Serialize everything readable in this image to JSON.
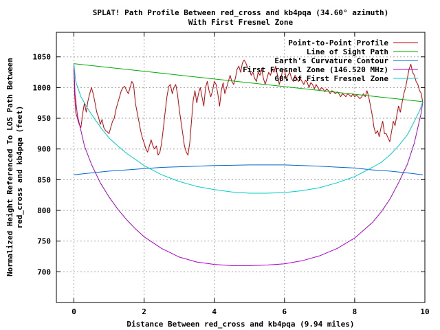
{
  "chart_data": {
    "type": "line",
    "title": [
      "SPLAT! Path Profile Between red_cross and kb4pqa (34.60° azimuth)",
      "With First Fresnel Zone"
    ],
    "xlabel": "Distance Between red_cross and kb4pqa (9.94 miles)",
    "ylabel": [
      "Normalized Height Referenced To LOS Path Between",
      "red_cross and kb4pqa (feet)"
    ],
    "xlim": [
      -0.5,
      10
    ],
    "ylim": [
      650,
      1090
    ],
    "xticks": [
      "0",
      "2",
      "4",
      "6",
      "8",
      "10"
    ],
    "xtick_values": [
      0,
      2,
      4,
      6,
      8,
      10
    ],
    "yticks": [
      "700",
      "750",
      "800",
      "850",
      "900",
      "950",
      "1000",
      "1050"
    ],
    "ytick_values": [
      700,
      750,
      800,
      850,
      900,
      950,
      1000,
      1050
    ],
    "grid": true,
    "legend_position": "top-right",
    "series": [
      {
        "name": "Point-to-Point Profile",
        "color": "#cc0000",
        "points": [
          [
            0.0,
            1035
          ],
          [
            0.02,
            990
          ],
          [
            0.05,
            960
          ],
          [
            0.1,
            950
          ],
          [
            0.15,
            940
          ],
          [
            0.2,
            935
          ],
          [
            0.25,
            958
          ],
          [
            0.3,
            975
          ],
          [
            0.35,
            960
          ],
          [
            0.4,
            978
          ],
          [
            0.45,
            990
          ],
          [
            0.5,
            1000
          ],
          [
            0.55,
            990
          ],
          [
            0.6,
            975
          ],
          [
            0.65,
            960
          ],
          [
            0.7,
            952
          ],
          [
            0.75,
            940
          ],
          [
            0.8,
            948
          ],
          [
            0.85,
            935
          ],
          [
            0.9,
            930
          ],
          [
            0.95,
            928
          ],
          [
            1.0,
            925
          ],
          [
            1.05,
            935
          ],
          [
            1.1,
            945
          ],
          [
            1.15,
            950
          ],
          [
            1.2,
            965
          ],
          [
            1.25,
            975
          ],
          [
            1.3,
            985
          ],
          [
            1.35,
            995
          ],
          [
            1.4,
            1000
          ],
          [
            1.45,
            1002
          ],
          [
            1.5,
            995
          ],
          [
            1.55,
            990
          ],
          [
            1.6,
            1000
          ],
          [
            1.65,
            1010
          ],
          [
            1.7,
            1005
          ],
          [
            1.75,
            975
          ],
          [
            1.8,
            960
          ],
          [
            1.85,
            945
          ],
          [
            1.9,
            930
          ],
          [
            1.95,
            918
          ],
          [
            2.0,
            910
          ],
          [
            2.05,
            900
          ],
          [
            2.1,
            895
          ],
          [
            2.15,
            905
          ],
          [
            2.2,
            915
          ],
          [
            2.25,
            905
          ],
          [
            2.3,
            900
          ],
          [
            2.35,
            905
          ],
          [
            2.4,
            890
          ],
          [
            2.45,
            895
          ],
          [
            2.5,
            910
          ],
          [
            2.55,
            935
          ],
          [
            2.6,
            960
          ],
          [
            2.65,
            985
          ],
          [
            2.7,
            1002
          ],
          [
            2.75,
            1005
          ],
          [
            2.8,
            990
          ],
          [
            2.85,
            1000
          ],
          [
            2.9,
            1005
          ],
          [
            2.95,
            990
          ],
          [
            3.0,
            965
          ],
          [
            3.05,
            945
          ],
          [
            3.1,
            925
          ],
          [
            3.15,
            905
          ],
          [
            3.2,
            895
          ],
          [
            3.25,
            890
          ],
          [
            3.3,
            910
          ],
          [
            3.35,
            945
          ],
          [
            3.4,
            980
          ],
          [
            3.45,
            995
          ],
          [
            3.5,
            975
          ],
          [
            3.55,
            990
          ],
          [
            3.6,
            1000
          ],
          [
            3.65,
            985
          ],
          [
            3.7,
            970
          ],
          [
            3.75,
            1000
          ],
          [
            3.8,
            1010
          ],
          [
            3.85,
            995
          ],
          [
            3.9,
            985
          ],
          [
            3.95,
            995
          ],
          [
            4.0,
            1010
          ],
          [
            4.05,
            1005
          ],
          [
            4.1,
            990
          ],
          [
            4.15,
            970
          ],
          [
            4.2,
            995
          ],
          [
            4.25,
            1008
          ],
          [
            4.3,
            990
          ],
          [
            4.35,
            1000
          ],
          [
            4.4,
            1010
          ],
          [
            4.45,
            1020
          ],
          [
            4.5,
            1010
          ],
          [
            4.55,
            1005
          ],
          [
            4.6,
            1015
          ],
          [
            4.65,
            1030
          ],
          [
            4.7,
            1035
          ],
          [
            4.75,
            1025
          ],
          [
            4.8,
            1040
          ],
          [
            4.85,
            1045
          ],
          [
            4.9,
            1040
          ],
          [
            4.95,
            1032
          ],
          [
            5.0,
            1030
          ],
          [
            5.05,
            1020
          ],
          [
            5.1,
            1025
          ],
          [
            5.15,
            1015
          ],
          [
            5.2,
            1010
          ],
          [
            5.25,
            1025
          ],
          [
            5.3,
            1020
          ],
          [
            5.35,
            1030
          ],
          [
            5.4,
            1015
          ],
          [
            5.45,
            1005
          ],
          [
            5.5,
            1015
          ],
          [
            5.55,
            1025
          ],
          [
            5.6,
            1020
          ],
          [
            5.65,
            1030
          ],
          [
            5.7,
            1025
          ],
          [
            5.75,
            1035
          ],
          [
            5.8,
            1020
          ],
          [
            5.85,
            1005
          ],
          [
            5.9,
            1015
          ],
          [
            5.95,
            1030
          ],
          [
            6.0,
            1028
          ],
          [
            6.05,
            1015
          ],
          [
            6.1,
            1020
          ],
          [
            6.15,
            1025
          ],
          [
            6.2,
            1015
          ],
          [
            6.25,
            1010
          ],
          [
            6.3,
            1020
          ],
          [
            6.35,
            1015
          ],
          [
            6.4,
            1010
          ],
          [
            6.45,
            1015
          ],
          [
            6.5,
            1010
          ],
          [
            6.55,
            1005
          ],
          [
            6.6,
            1012
          ],
          [
            6.65,
            1008
          ],
          [
            6.7,
            1000
          ],
          [
            6.75,
            1008
          ],
          [
            6.8,
            1005
          ],
          [
            6.85,
            998
          ],
          [
            6.9,
            1005
          ],
          [
            6.95,
            1000
          ],
          [
            7.0,
            995
          ],
          [
            7.05,
            1000
          ],
          [
            7.1,
            998
          ],
          [
            7.15,
            993
          ],
          [
            7.2,
            998
          ],
          [
            7.25,
            995
          ],
          [
            7.3,
            990
          ],
          [
            7.35,
            995
          ],
          [
            7.4,
            993
          ],
          [
            7.45,
            990
          ],
          [
            7.5,
            993
          ],
          [
            7.55,
            990
          ],
          [
            7.6,
            985
          ],
          [
            7.65,
            990
          ],
          [
            7.7,
            988
          ],
          [
            7.75,
            985
          ],
          [
            7.8,
            990
          ],
          [
            7.85,
            988
          ],
          [
            7.9,
            985
          ],
          [
            7.95,
            990
          ],
          [
            8.0,
            985
          ],
          [
            8.05,
            988
          ],
          [
            8.1,
            985
          ],
          [
            8.15,
            982
          ],
          [
            8.2,
            985
          ],
          [
            8.25,
            990
          ],
          [
            8.3,
            985
          ],
          [
            8.35,
            995
          ],
          [
            8.4,
            985
          ],
          [
            8.45,
            970
          ],
          [
            8.5,
            955
          ],
          [
            8.55,
            935
          ],
          [
            8.6,
            925
          ],
          [
            8.65,
            930
          ],
          [
            8.7,
            920
          ],
          [
            8.75,
            935
          ],
          [
            8.8,
            945
          ],
          [
            8.85,
            925
          ],
          [
            8.9,
            925
          ],
          [
            8.95,
            918
          ],
          [
            9.0,
            912
          ],
          [
            9.05,
            928
          ],
          [
            9.1,
            945
          ],
          [
            9.15,
            938
          ],
          [
            9.2,
            955
          ],
          [
            9.25,
            970
          ],
          [
            9.3,
            960
          ],
          [
            9.35,
            975
          ],
          [
            9.4,
            990
          ],
          [
            9.45,
            1000
          ],
          [
            9.5,
            1015
          ],
          [
            9.55,
            1030
          ],
          [
            9.6,
            1038
          ],
          [
            9.65,
            1025
          ],
          [
            9.7,
            1020
          ],
          [
            9.75,
            1010
          ],
          [
            9.8,
            1005
          ],
          [
            9.85,
            995
          ],
          [
            9.9,
            990
          ],
          [
            9.94,
            975
          ]
        ]
      },
      {
        "name": "Line of Sight Path",
        "color": "#00aa00",
        "points": [
          [
            0.0,
            1039
          ],
          [
            9.94,
            977
          ]
        ]
      },
      {
        "name": "Earth's Curvature Contour",
        "color": "#0066cc",
        "points": [
          [
            0.0,
            858
          ],
          [
            0.5,
            861
          ],
          [
            1.0,
            864
          ],
          [
            1.5,
            866
          ],
          [
            2.0,
            868
          ],
          [
            2.5,
            870
          ],
          [
            3.0,
            871
          ],
          [
            3.5,
            872
          ],
          [
            4.0,
            873
          ],
          [
            4.5,
            873.5
          ],
          [
            5.0,
            874
          ],
          [
            5.5,
            874
          ],
          [
            6.0,
            874
          ],
          [
            6.5,
            873
          ],
          [
            7.0,
            872
          ],
          [
            7.5,
            870.5
          ],
          [
            8.0,
            869
          ],
          [
            8.5,
            866
          ],
          [
            9.0,
            864
          ],
          [
            9.5,
            861
          ],
          [
            9.94,
            858
          ]
        ]
      },
      {
        "name": "First Fresnel Zone (146.520 MHz)",
        "color": "#aa00cc",
        "points": [
          [
            0.0,
            1039
          ],
          [
            0.03,
            990
          ],
          [
            0.1,
            955
          ],
          [
            0.2,
            930
          ],
          [
            0.3,
            905
          ],
          [
            0.5,
            875
          ],
          [
            0.75,
            845
          ],
          [
            1.0,
            822
          ],
          [
            1.25,
            802
          ],
          [
            1.5,
            785
          ],
          [
            1.75,
            770
          ],
          [
            2.0,
            757
          ],
          [
            2.5,
            738
          ],
          [
            3.0,
            724
          ],
          [
            3.5,
            716
          ],
          [
            4.0,
            712
          ],
          [
            4.5,
            710
          ],
          [
            5.0,
            710
          ],
          [
            5.5,
            711
          ],
          [
            6.0,
            713
          ],
          [
            6.5,
            718
          ],
          [
            7.0,
            726
          ],
          [
            7.5,
            738
          ],
          [
            8.0,
            755
          ],
          [
            8.5,
            780
          ],
          [
            8.75,
            797
          ],
          [
            9.0,
            818
          ],
          [
            9.25,
            845
          ],
          [
            9.5,
            875
          ],
          [
            9.7,
            910
          ],
          [
            9.82,
            940
          ],
          [
            9.9,
            960
          ],
          [
            9.94,
            977
          ]
        ]
      },
      {
        "name": "60% of First Fresnel Zone",
        "color": "#00cccc",
        "points": [
          [
            0.0,
            1039
          ],
          [
            0.05,
            1010
          ],
          [
            0.2,
            985
          ],
          [
            0.4,
            965
          ],
          [
            0.6,
            948
          ],
          [
            0.8,
            932
          ],
          [
            1.0,
            918
          ],
          [
            1.25,
            905
          ],
          [
            1.5,
            893
          ],
          [
            1.75,
            883
          ],
          [
            2.0,
            873
          ],
          [
            2.5,
            858
          ],
          [
            3.0,
            847
          ],
          [
            3.5,
            839
          ],
          [
            4.0,
            834
          ],
          [
            4.5,
            830
          ],
          [
            5.0,
            828
          ],
          [
            5.5,
            828
          ],
          [
            6.0,
            829
          ],
          [
            6.5,
            832
          ],
          [
            7.0,
            837
          ],
          [
            7.5,
            845
          ],
          [
            8.0,
            855
          ],
          [
            8.5,
            870
          ],
          [
            8.75,
            878
          ],
          [
            9.0,
            890
          ],
          [
            9.25,
            905
          ],
          [
            9.5,
            923
          ],
          [
            9.7,
            945
          ],
          [
            9.85,
            962
          ],
          [
            9.94,
            977
          ]
        ]
      }
    ]
  }
}
